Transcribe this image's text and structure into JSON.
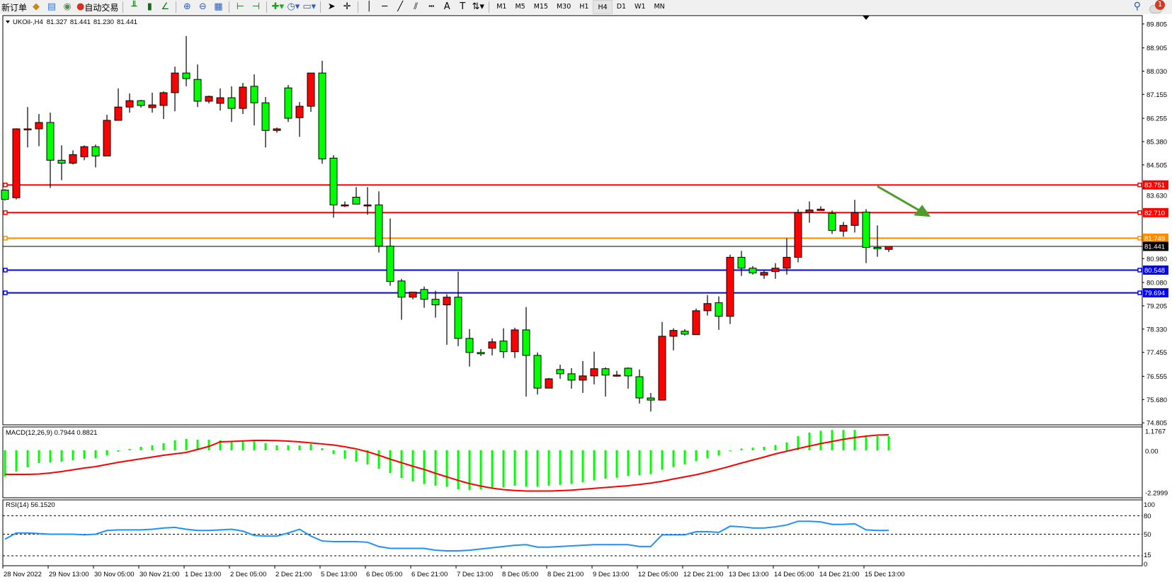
{
  "toolbar": {
    "new_order_label": "新订单",
    "auto_trading_label": "自动交易",
    "icons": [
      "new-order-icon",
      "metaeditor-icon",
      "navigator-icon",
      "signals-icon",
      "auto-trading-icon",
      "bar-chart-icon",
      "candlestick-icon",
      "line-chart-icon",
      "zoom-in-icon",
      "zoom-out-icon",
      "tile-windows-icon",
      "chart-shift-icon",
      "autoscroll-icon",
      "indicators-icon",
      "periods-icon",
      "templates-icon",
      "cursor-icon",
      "crosshair-icon",
      "vertical-line-icon",
      "horizontal-line-icon",
      "trendline-icon",
      "fibonacci-icon",
      "fibo-fan-icon",
      "text-icon",
      "text-label-icon",
      "arrows-icon"
    ],
    "timeframes": [
      "M1",
      "M5",
      "M15",
      "M30",
      "H1",
      "H4",
      "D1",
      "W1",
      "MN"
    ],
    "active_timeframe": "H4",
    "notification_count": "1"
  },
  "chart": {
    "symbol_period": "UKOil-,H4",
    "open": "81.327",
    "high": "81.441",
    "low": "81.230",
    "close": "81.441",
    "colors": {
      "bull": "#ff0000",
      "bear": "#00ff00",
      "background": "#ffffff",
      "arrow": "#4f9b2c"
    }
  },
  "chart_data": [
    {
      "type": "candlestick",
      "ylim": [
        74.73,
        90.12
      ],
      "y_ticks": [
        "89.805",
        "88.905",
        "88.030",
        "87.155",
        "86.255",
        "85.380",
        "84.505",
        "83.630",
        "80.980",
        "80.080",
        "79.205",
        "78.330",
        "77.455",
        "76.555",
        "75.680",
        "74.805"
      ],
      "x_labels": [
        "28 Nov 2022",
        "29 Nov 13:00",
        "30 Nov 05:00",
        "30 Nov 21:00",
        "1 Dec 13:00",
        "2 Dec 05:00",
        "2 Dec 21:00",
        "5 Dec 13:00",
        "6 Dec 05:00",
        "6 Dec 21:00",
        "7 Dec 13:00",
        "8 Dec 05:00",
        "8 Dec 21:00",
        "9 Dec 13:00",
        "12 Dec 05:00",
        "12 Dec 21:00",
        "13 Dec 13:00",
        "14 Dec 05:00",
        "14 Dec 21:00",
        "15 Dec 13:00"
      ],
      "x_label_every_bars": 4,
      "ohlc": [
        [
          83.56,
          83.59,
          83.16,
          83.21
        ],
        [
          83.27,
          85.88,
          83.21,
          85.86
        ],
        [
          85.85,
          86.68,
          85.16,
          85.86
        ],
        [
          85.86,
          86.42,
          85.21,
          86.1
        ],
        [
          86.1,
          86.47,
          83.64,
          84.68
        ],
        [
          84.68,
          85.24,
          83.93,
          84.57
        ],
        [
          84.57,
          85.05,
          84.52,
          84.89
        ],
        [
          84.81,
          85.24,
          84.68,
          85.19
        ],
        [
          85.19,
          85.27,
          84.41,
          84.84
        ],
        [
          84.84,
          86.39,
          84.84,
          86.18
        ],
        [
          86.18,
          87.38,
          86.18,
          86.68
        ],
        [
          86.68,
          87.19,
          86.47,
          86.92
        ],
        [
          86.92,
          86.95,
          86.66,
          86.74
        ],
        [
          86.66,
          87.22,
          86.47,
          86.76
        ],
        [
          86.74,
          87.27,
          86.23,
          87.22
        ],
        [
          87.22,
          88.2,
          86.52,
          87.96
        ],
        [
          87.96,
          89.35,
          87.46,
          87.75
        ],
        [
          87.72,
          88.28,
          86.68,
          86.9
        ],
        [
          86.9,
          87.11,
          86.82,
          87.08
        ],
        [
          86.82,
          87.38,
          86.55,
          87.03
        ],
        [
          87.03,
          87.46,
          86.12,
          86.63
        ],
        [
          86.63,
          87.59,
          86.42,
          87.43
        ],
        [
          87.46,
          87.91,
          85.99,
          86.84
        ],
        [
          86.84,
          87.06,
          85.16,
          85.8
        ],
        [
          85.8,
          85.91,
          85.72,
          85.86
        ],
        [
          87.4,
          87.51,
          86.12,
          86.26
        ],
        [
          86.28,
          86.87,
          85.56,
          86.71
        ],
        [
          86.71,
          87.96,
          86.5,
          87.96
        ],
        [
          87.96,
          88.42,
          84.55,
          84.73
        ],
        [
          84.76,
          84.87,
          82.52,
          83.0
        ],
        [
          83.0,
          83.13,
          82.92,
          83.0
        ],
        [
          83.29,
          83.67,
          83.03,
          83.03
        ],
        [
          83.0,
          83.67,
          82.63,
          83.0
        ],
        [
          83.0,
          83.51,
          81.21,
          81.45
        ],
        [
          81.45,
          82.49,
          79.96,
          80.12
        ],
        [
          80.14,
          80.22,
          78.68,
          79.53
        ],
        [
          79.53,
          79.72,
          79.45,
          79.72
        ],
        [
          79.82,
          79.93,
          79.13,
          79.45
        ],
        [
          79.45,
          79.77,
          78.76,
          79.24
        ],
        [
          79.24,
          79.64,
          77.74,
          79.53
        ],
        [
          79.53,
          80.49,
          77.69,
          77.98
        ],
        [
          77.98,
          78.33,
          76.92,
          77.45
        ],
        [
          77.45,
          77.58,
          77.32,
          77.4
        ],
        [
          77.61,
          77.98,
          77.34,
          77.85
        ],
        [
          77.88,
          78.36,
          77.24,
          77.48
        ],
        [
          77.48,
          78.38,
          77.24,
          78.3
        ],
        [
          78.3,
          79.16,
          75.79,
          77.34
        ],
        [
          77.34,
          77.45,
          75.87,
          76.11
        ],
        [
          76.11,
          76.49,
          76.11,
          76.46
        ],
        [
          76.81,
          76.99,
          76.46,
          76.65
        ],
        [
          76.65,
          76.86,
          76.09,
          76.41
        ],
        [
          76.41,
          77.13,
          75.93,
          76.57
        ],
        [
          76.57,
          77.48,
          76.25,
          76.84
        ],
        [
          76.84,
          76.89,
          75.79,
          76.6
        ],
        [
          76.6,
          76.76,
          76.54,
          76.6
        ],
        [
          76.86,
          76.89,
          76.09,
          76.57
        ],
        [
          76.54,
          76.81,
          75.53,
          75.74
        ],
        [
          75.74,
          75.93,
          75.23,
          75.66
        ],
        [
          75.66,
          78.6,
          75.66,
          78.06
        ],
        [
          78.06,
          78.36,
          77.53,
          78.28
        ],
        [
          78.25,
          78.33,
          78.09,
          78.14
        ],
        [
          78.12,
          79.1,
          78.12,
          79.02
        ],
        [
          79.02,
          79.61,
          78.84,
          79.29
        ],
        [
          79.32,
          79.56,
          78.3,
          78.81
        ],
        [
          78.81,
          81.13,
          78.52,
          81.03
        ],
        [
          81.03,
          81.27,
          80.33,
          80.62
        ],
        [
          80.62,
          80.7,
          80.38,
          80.44
        ],
        [
          80.36,
          80.54,
          80.22,
          80.46
        ],
        [
          80.49,
          80.81,
          80.22,
          80.62
        ],
        [
          80.62,
          81.75,
          80.38,
          81.03
        ],
        [
          81.03,
          82.84,
          80.84,
          82.71
        ],
        [
          82.71,
          83.13,
          82.33,
          82.81
        ],
        [
          82.79,
          82.95,
          82.79,
          82.84
        ],
        [
          82.68,
          82.79,
          81.91,
          82.04
        ],
        [
          82.01,
          82.36,
          81.8,
          82.23
        ],
        [
          82.23,
          83.19,
          81.96,
          82.71
        ],
        [
          82.73,
          82.84,
          80.81,
          81.4
        ],
        [
          81.4,
          82.23,
          81.05,
          81.35
        ],
        [
          81.327,
          81.441,
          81.23,
          81.441
        ]
      ],
      "horizontal_lines": [
        {
          "price": "83.751",
          "color": "#ff0000"
        },
        {
          "price": "82.710",
          "color": "#ff0000"
        },
        {
          "price": "81.749",
          "color": "#ff8c00"
        },
        {
          "price": "81.441",
          "color": "#000000"
        },
        {
          "price": "80.548",
          "color": "#0000ff"
        },
        {
          "price": "79.694",
          "color": "#0000ff"
        }
      ],
      "arrow": {
        "from": {
          "bar": 77,
          "price": 83.7
        },
        "to": {
          "bar": 81.7,
          "price": 82.55
        },
        "color": "#4f9b2c"
      }
    },
    {
      "type": "bar+line",
      "label": "MACD(12,26,9) 0.7944 0.8821",
      "y_ticks": [
        "1.1767",
        "0.00",
        "-2.2999"
      ],
      "ylim": [
        -2.68,
        1.32
      ],
      "histogram": [
        -1.48,
        -1.2,
        -0.96,
        -0.72,
        -0.68,
        -0.64,
        -0.56,
        -0.48,
        -0.44,
        -0.28,
        -0.08,
        0.08,
        0.2,
        0.28,
        0.4,
        0.56,
        0.64,
        0.6,
        0.6,
        0.56,
        0.5,
        0.5,
        0.52,
        0.4,
        0.28,
        0.28,
        0.28,
        0.36,
        0.12,
        -0.2,
        -0.48,
        -0.64,
        -0.8,
        -1.04,
        -1.28,
        -1.56,
        -1.76,
        -1.9,
        -2.0,
        -2.05,
        -2.2,
        -2.25,
        -2.2,
        -2.15,
        -2.1,
        -2.0,
        -2.05,
        -2.05,
        -2.0,
        -1.95,
        -1.9,
        -1.8,
        -1.7,
        -1.6,
        -1.55,
        -1.45,
        -1.4,
        -1.35,
        -1.1,
        -0.95,
        -0.8,
        -0.6,
        -0.45,
        -0.3,
        0.0,
        0.1,
        0.15,
        0.2,
        0.3,
        0.45,
        0.8,
        1.0,
        1.1,
        1.15,
        1.15,
        1.15,
        0.85,
        0.8,
        0.7944
      ],
      "signal": [
        -1.36,
        -1.36,
        -1.36,
        -1.34,
        -1.28,
        -1.2,
        -1.1,
        -1.0,
        -0.92,
        -0.8,
        -0.68,
        -0.58,
        -0.48,
        -0.38,
        -0.28,
        -0.2,
        -0.12,
        0.05,
        0.22,
        0.48,
        0.5,
        0.53,
        0.56,
        0.56,
        0.55,
        0.52,
        0.48,
        0.42,
        0.36,
        0.3,
        0.2,
        0.08,
        -0.08,
        -0.28,
        -0.5,
        -0.7,
        -0.9,
        -1.08,
        -1.3,
        -1.5,
        -1.7,
        -1.88,
        -2.02,
        -2.14,
        -2.22,
        -2.27,
        -2.3,
        -2.3,
        -2.3,
        -2.28,
        -2.25,
        -2.2,
        -2.15,
        -2.1,
        -2.05,
        -2.0,
        -1.93,
        -1.85,
        -1.75,
        -1.62,
        -1.5,
        -1.38,
        -1.23,
        -1.07,
        -0.9,
        -0.72,
        -0.55,
        -0.38,
        -0.2,
        -0.05,
        0.1,
        0.24,
        0.38,
        0.5,
        0.62,
        0.72,
        0.8,
        0.86,
        0.8821
      ],
      "colors": {
        "histogram": "#00ff00",
        "signal": "#ff0000"
      }
    },
    {
      "type": "line",
      "label": "RSI(14) 56.1520",
      "y_ticks": [
        "100",
        "80",
        "50",
        "15",
        "0"
      ],
      "levels": [
        80,
        50,
        15
      ],
      "ylim": [
        0,
        100
      ],
      "values": [
        42,
        52,
        52,
        51,
        50,
        50,
        50,
        49,
        50,
        56,
        57,
        57,
        57,
        58,
        60,
        61,
        58,
        56,
        56,
        57,
        58,
        55,
        48,
        47,
        47,
        52,
        58,
        47,
        39,
        38,
        38,
        38,
        37,
        30,
        27,
        27,
        27,
        27,
        24,
        23,
        23,
        24,
        26,
        28,
        30,
        32,
        33,
        29,
        29,
        30,
        31,
        32,
        33,
        33,
        33,
        33,
        30,
        30,
        49,
        49,
        49,
        54,
        54,
        53,
        63,
        62,
        60,
        60,
        62,
        65,
        71,
        71,
        70,
        66,
        66,
        67,
        57,
        56,
        56.152
      ],
      "color": "#1e90ff"
    }
  ]
}
